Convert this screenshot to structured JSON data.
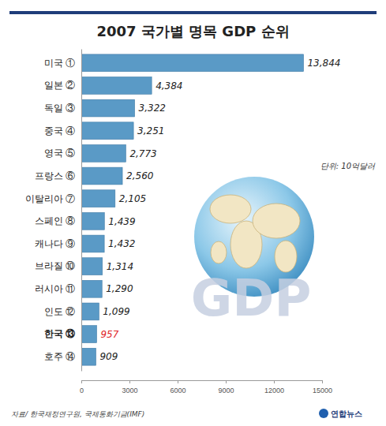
{
  "chart_data": {
    "type": "bar",
    "orientation": "horizontal",
    "title": "2007 국가별 명목 GDP 순위",
    "categories": [
      "미국 ①",
      "일본 ②",
      "독일 ③",
      "중국 ④",
      "영국 ⑤",
      "프랑스 ⑥",
      "이탈리아 ⑦",
      "스페인 ⑧",
      "캐나다 ⑨",
      "브라질 ⑩",
      "러시아 ⑪",
      "인도 ⑫",
      "한국 ⑬",
      "호주 ⑭"
    ],
    "values": [
      13844,
      4384,
      3322,
      3251,
      2773,
      2560,
      2105,
      1439,
      1432,
      1314,
      1290,
      1099,
      957,
      909
    ],
    "value_labels": [
      "13,844",
      "4,384",
      "3,322",
      "3,251",
      "2,773",
      "2,560",
      "2,105",
      "1,439",
      "1,432",
      "1,314",
      "1,290",
      "1,099",
      "957",
      "909"
    ],
    "data_labels": true,
    "color": "#5a9ac6",
    "xlim": [
      0,
      15000
    ],
    "xticks": [
      0,
      3000,
      6000,
      9000,
      12000,
      15000
    ],
    "grid": false,
    "annotations": [
      "단위: 10억달러",
      "GDP",
      "자료/ 한국재정연구원, 국제통화기금(IMF)",
      "연합뉴스"
    ]
  }
}
